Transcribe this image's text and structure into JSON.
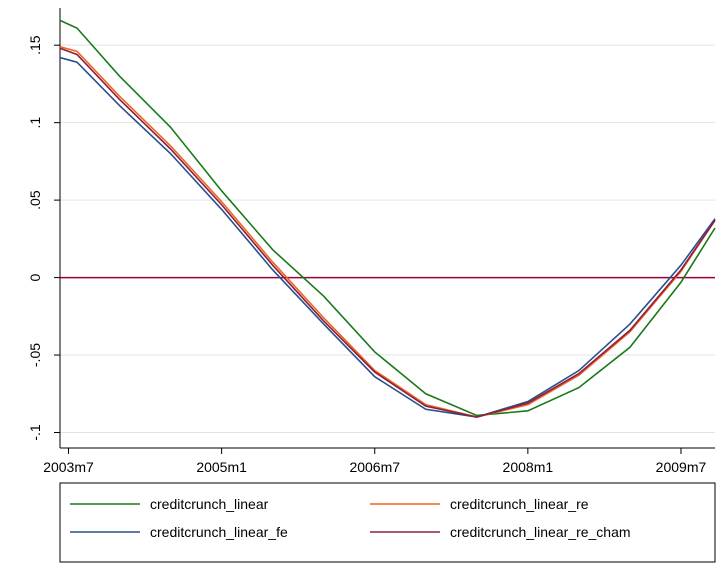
{
  "chart_data": {
    "type": "line",
    "x": [
      "2003m6",
      "2003m8",
      "2004m1",
      "2004m7",
      "2005m1",
      "2005m7",
      "2006m1",
      "2006m7",
      "2007m1",
      "2007m7",
      "2008m1",
      "2008m7",
      "2009m1",
      "2009m7",
      "2009m11"
    ],
    "series": [
      {
        "name": "creditcrunch_linear",
        "color": "#1a7a1a",
        "values": [
          0.166,
          0.161,
          0.13,
          0.097,
          0.056,
          0.018,
          -0.012,
          -0.048,
          -0.075,
          -0.089,
          -0.086,
          -0.071,
          -0.045,
          -0.003,
          0.032
        ]
      },
      {
        "name": "creditcrunch_linear_re",
        "color": "#f0641e",
        "values": [
          0.149,
          0.146,
          0.117,
          0.085,
          0.049,
          0.01,
          -0.026,
          -0.06,
          -0.082,
          -0.09,
          -0.082,
          -0.063,
          -0.035,
          0.004,
          0.037
        ]
      },
      {
        "name": "creditcrunch_linear_fe",
        "color": "#2a4f8a",
        "values": [
          0.142,
          0.139,
          0.111,
          0.08,
          0.044,
          0.005,
          -0.03,
          -0.064,
          -0.085,
          -0.09,
          -0.08,
          -0.06,
          -0.03,
          0.008,
          0.038
        ]
      },
      {
        "name": "creditcrunch_linear_re_cham",
        "color": "#8b2040",
        "values": [
          0.148,
          0.144,
          0.115,
          0.083,
          0.047,
          0.008,
          -0.028,
          -0.061,
          -0.083,
          -0.09,
          -0.081,
          -0.062,
          -0.034,
          0.005,
          0.037
        ]
      }
    ],
    "xlim": [
      "2003m6",
      "2009m11"
    ],
    "xticks": [
      "2003m7",
      "2005m1",
      "2006m7",
      "2008m1",
      "2009m7"
    ],
    "ylim": [
      -0.11,
      0.174
    ],
    "yticks": [
      {
        "value": -0.1,
        "label": "-.1"
      },
      {
        "value": -0.05,
        "label": "-.05"
      },
      {
        "value": 0,
        "label": "0"
      },
      {
        "value": 0.05,
        "label": ".05"
      },
      {
        "value": 0.1,
        "label": ".1"
      },
      {
        "value": 0.15,
        "label": ".15"
      }
    ],
    "yline": {
      "value": 0,
      "color": "#a0003a"
    },
    "grid": true
  }
}
